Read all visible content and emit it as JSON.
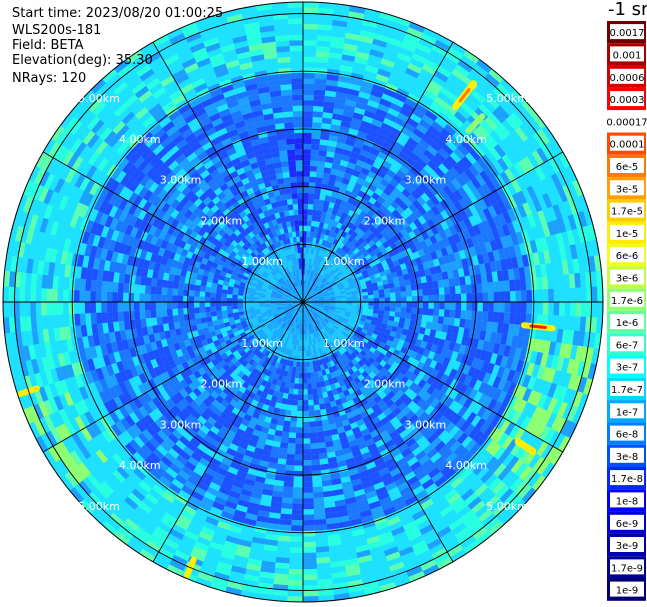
{
  "info": {
    "start_time": "Start time: 2023/08/20 01:00:25",
    "station": "WLS200s-181",
    "field": "Field: BETA",
    "elevation": "Elevation(deg): 35.30",
    "nrays": "NRays: 120"
  },
  "chart_data": {
    "type": "heatmap",
    "projection": "polar-ppi",
    "field": "BETA",
    "elevation_deg": 35.3,
    "nrays": 120,
    "range_rings_km": [
      1,
      2,
      3,
      4,
      5
    ],
    "max_range_km": 5.2,
    "ring_labels": [
      "1.00km",
      "2.00km",
      "3.00km",
      "4.00km",
      "5.00km"
    ],
    "spoke_angles_deg": [
      0,
      30,
      60,
      90,
      120,
      150,
      180,
      210,
      240,
      270,
      300,
      330
    ],
    "colorbar_unit": "-1 sr",
    "colorbar_labels": [
      "0.0017",
      "0.001",
      "0.0006",
      "0.0003",
      "0.00017",
      "0.0001",
      "6e-5",
      "3e-5",
      "1.7e-5",
      "1e-5",
      "6e-6",
      "3e-6",
      "1.7e-6",
      "1e-6",
      "6e-7",
      "3e-7",
      "1.7e-7",
      "1e-7",
      "6e-8",
      "3e-8",
      "1.7e-8",
      "1e-8",
      "6e-9",
      "3e-9",
      "1.7e-9",
      "1e-9"
    ],
    "colorbar_colors": [
      "#6f0000",
      "#a80000",
      "#d40000",
      "#ff0000",
      "#ffffff",
      "#ff4a00",
      "#ff7a00",
      "#ffa000",
      "#ffcc00",
      "#ffee00",
      "#f0ff1a",
      "#c0ff40",
      "#90ff70",
      "#60ffa0",
      "#30ffd0",
      "#00ffff",
      "#00d8ff",
      "#00a8ff",
      "#0080ff",
      "#0050ff",
      "#0028ff",
      "#0000ff",
      "#0000d8",
      "#0000b0",
      "#000090",
      "#000070"
    ],
    "colors": {
      "background_field": "#1ee0ff",
      "near_field": "#1e90ff",
      "mid_field": "#1e50ff",
      "enhanced": "#90ff70",
      "strong": "#ffee00",
      "peak": "#ff2000"
    }
  }
}
